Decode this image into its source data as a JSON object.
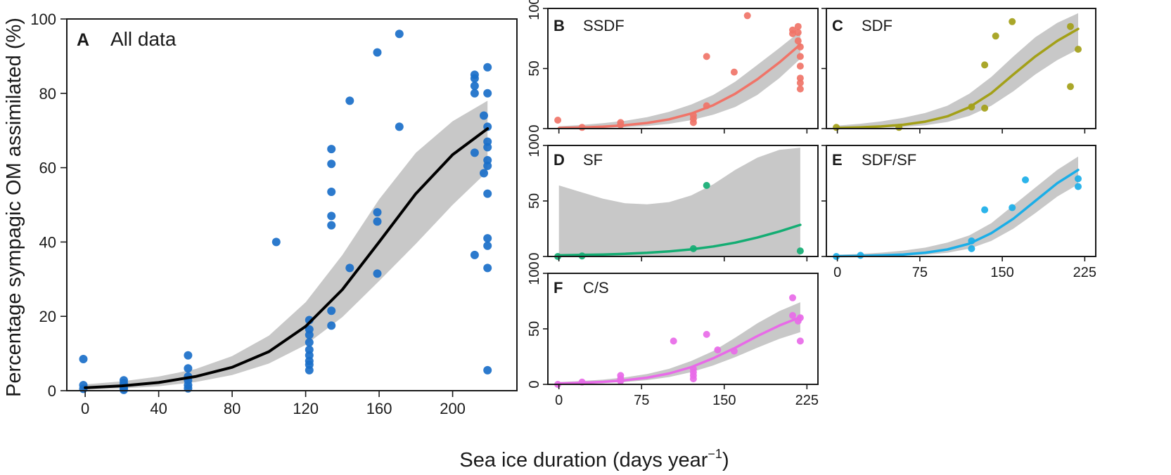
{
  "figure": {
    "xlabel": "Sea ice duration (days year",
    "xlabel_sup": "−1",
    "xlabel_close": ")",
    "ylabel": "Percentage sympagic OM assimilated (%)"
  },
  "chart_data": [
    {
      "id": "A",
      "label": "A",
      "title": "All data",
      "type": "scatter",
      "xlim": [
        -10,
        235
      ],
      "ylim": [
        0,
        100
      ],
      "xticks": [
        0,
        40,
        80,
        120,
        160,
        200
      ],
      "yticks": [
        0,
        20,
        40,
        60,
        80,
        100
      ],
      "show_xtick_labels": true,
      "show_ytick_labels": true,
      "point_color": "#1a6fc9",
      "line_color": "#000000",
      "band_color": "#c8c8c8",
      "points": [
        [
          -1,
          8.5
        ],
        [
          -1,
          1.5
        ],
        [
          -1,
          0.5
        ],
        [
          21,
          2.8
        ],
        [
          21,
          2
        ],
        [
          21,
          1.2
        ],
        [
          21,
          0.6
        ],
        [
          21,
          0.2
        ],
        [
          56,
          9.5
        ],
        [
          56,
          6
        ],
        [
          56,
          3.8
        ],
        [
          56,
          2.8
        ],
        [
          56,
          1.5
        ],
        [
          56,
          0.6
        ],
        [
          104,
          40
        ],
        [
          122,
          19
        ],
        [
          122,
          16.5
        ],
        [
          122,
          15
        ],
        [
          122,
          13
        ],
        [
          122,
          11
        ],
        [
          122,
          9.5
        ],
        [
          122,
          8
        ],
        [
          122,
          7
        ],
        [
          122,
          5.5
        ],
        [
          134,
          65
        ],
        [
          134,
          61
        ],
        [
          134,
          53.5
        ],
        [
          134,
          47
        ],
        [
          134,
          44.5
        ],
        [
          134,
          21.5
        ],
        [
          134,
          17.5
        ],
        [
          144,
          33
        ],
        [
          144,
          78
        ],
        [
          159,
          91
        ],
        [
          159,
          48
        ],
        [
          159,
          45.5
        ],
        [
          159,
          31.5
        ],
        [
          171,
          96
        ],
        [
          171,
          71
        ],
        [
          212,
          85
        ],
        [
          212,
          84
        ],
        [
          212,
          82
        ],
        [
          212,
          80
        ],
        [
          212,
          64
        ],
        [
          212,
          36.5
        ],
        [
          217,
          74
        ],
        [
          217,
          58.5
        ],
        [
          219,
          87
        ],
        [
          219,
          80
        ],
        [
          219,
          71
        ],
        [
          219,
          67
        ],
        [
          219,
          65.5
        ],
        [
          219,
          62
        ],
        [
          219,
          60.5
        ],
        [
          219,
          53
        ],
        [
          219,
          41
        ],
        [
          219,
          39
        ],
        [
          219,
          33
        ],
        [
          219,
          5.5
        ]
      ],
      "fit": {
        "x": [
          0,
          20,
          40,
          60,
          80,
          100,
          120,
          140,
          160,
          180,
          200,
          219
        ],
        "y": [
          0.8,
          1.3,
          2.2,
          3.8,
          6.3,
          10.5,
          17.3,
          27.2,
          40,
          53,
          63.5,
          70.5
        ]
      },
      "band": {
        "x": [
          0,
          20,
          40,
          60,
          80,
          100,
          120,
          140,
          160,
          180,
          200,
          219
        ],
        "lower": [
          0.3,
          0.6,
          1.2,
          2.3,
          4.2,
          7.3,
          12.3,
          19.8,
          29.5,
          39.5,
          50,
          59
        ],
        "upper": [
          1.7,
          2.5,
          3.8,
          5.8,
          9.3,
          14.8,
          23.8,
          36.5,
          51.5,
          64,
          72.5,
          78
        ]
      }
    },
    {
      "id": "B",
      "label": "B",
      "title": "SSDF",
      "type": "scatter",
      "xlim": [
        -10,
        235
      ],
      "ylim": [
        0,
        100
      ],
      "xticks": [
        0,
        75,
        150,
        225
      ],
      "yticks": [
        0,
        50,
        100
      ],
      "show_xtick_labels": false,
      "show_ytick_labels": true,
      "point_color": "#f07468",
      "line_color": "#f07468",
      "band_color": "#c8c8c8",
      "points": [
        [
          -1,
          7
        ],
        [
          21,
          1
        ],
        [
          56,
          5
        ],
        [
          56,
          3
        ],
        [
          122,
          11
        ],
        [
          122,
          8
        ],
        [
          122,
          5
        ],
        [
          134,
          60
        ],
        [
          134,
          19
        ],
        [
          159,
          47
        ],
        [
          171,
          94
        ],
        [
          212,
          82
        ],
        [
          212,
          79
        ],
        [
          217,
          85
        ],
        [
          217,
          80
        ],
        [
          217,
          73
        ],
        [
          219,
          68
        ],
        [
          219,
          60
        ],
        [
          219,
          52
        ],
        [
          219,
          42
        ],
        [
          219,
          38
        ],
        [
          219,
          33
        ]
      ],
      "fit": {
        "x": [
          0,
          20,
          40,
          60,
          80,
          100,
          120,
          140,
          160,
          180,
          200,
          219
        ],
        "y": [
          0.5,
          0.9,
          1.6,
          2.8,
          4.7,
          7.7,
          12.5,
          19.5,
          29,
          41,
          55,
          70
        ]
      },
      "band": {
        "x": [
          0,
          20,
          40,
          60,
          80,
          100,
          120,
          140,
          160,
          180,
          200,
          219
        ],
        "lower": [
          0.1,
          0.3,
          0.6,
          1.2,
          2.2,
          4,
          7,
          11.5,
          18,
          28,
          42,
          58
        ],
        "upper": [
          2,
          3,
          4.5,
          6.5,
          9.5,
          14,
          20,
          28,
          39,
          53,
          67,
          81
        ]
      }
    },
    {
      "id": "C",
      "label": "C",
      "title": "SDF",
      "type": "scatter",
      "xlim": [
        -10,
        235
      ],
      "ylim": [
        0,
        100
      ],
      "xticks": [
        0,
        75,
        150,
        225
      ],
      "yticks": [
        0,
        50,
        100
      ],
      "show_xtick_labels": false,
      "show_ytick_labels": false,
      "point_color": "#a3a018",
      "line_color": "#a3a018",
      "band_color": "#c8c8c8",
      "points": [
        [
          -1,
          1
        ],
        [
          56,
          1
        ],
        [
          122,
          18
        ],
        [
          134,
          53
        ],
        [
          134,
          17
        ],
        [
          144,
          77
        ],
        [
          159,
          89
        ],
        [
          212,
          85
        ],
        [
          212,
          35
        ],
        [
          219,
          66
        ]
      ],
      "fit": {
        "x": [
          0,
          20,
          40,
          60,
          80,
          100,
          120,
          140,
          160,
          180,
          200,
          219
        ],
        "y": [
          0.5,
          1,
          1.8,
          3.2,
          5.8,
          10.2,
          17.8,
          29.5,
          45,
          60,
          73,
          83
        ]
      },
      "band": {
        "x": [
          0,
          20,
          40,
          60,
          80,
          100,
          120,
          140,
          160,
          180,
          200,
          219
        ],
        "lower": [
          0.1,
          0.3,
          0.7,
          1.4,
          2.8,
          5.5,
          10.5,
          19,
          31,
          45,
          57,
          66
        ],
        "upper": [
          2.5,
          4,
          6,
          9,
          13,
          19,
          29,
          43,
          60,
          76,
          88,
          96
        ]
      }
    },
    {
      "id": "D",
      "label": "D",
      "title": "SF",
      "type": "scatter",
      "xlim": [
        -10,
        235
      ],
      "ylim": [
        0,
        100
      ],
      "xticks": [
        0,
        75,
        150,
        225
      ],
      "yticks": [
        0,
        50,
        100
      ],
      "show_xtick_labels": false,
      "show_ytick_labels": true,
      "point_color": "#14ad73",
      "line_color": "#14ad73",
      "band_color": "#c8c8c8",
      "points": [
        [
          -1,
          0
        ],
        [
          21,
          0.5
        ],
        [
          122,
          7
        ],
        [
          134,
          64
        ],
        [
          219,
          5
        ]
      ],
      "fit": {
        "x": [
          0,
          20,
          40,
          60,
          80,
          100,
          120,
          140,
          160,
          180,
          200,
          219
        ],
        "y": [
          1,
          1.4,
          1.8,
          2.4,
          3.3,
          4.6,
          6.4,
          9,
          12.5,
          17,
          22.5,
          28.5
        ]
      },
      "band": {
        "x": [
          0,
          20,
          40,
          60,
          80,
          100,
          120,
          140,
          160,
          180,
          200,
          219
        ],
        "lower": [
          0,
          0,
          0,
          0,
          0,
          0,
          0,
          0,
          0,
          0,
          0,
          0
        ],
        "upper": [
          64,
          58,
          52,
          48,
          47,
          49,
          55,
          65,
          78,
          89,
          96,
          98
        ]
      }
    },
    {
      "id": "E",
      "label": "E",
      "title": "SDF/SF",
      "type": "scatter",
      "xlim": [
        -10,
        235
      ],
      "ylim": [
        0,
        100
      ],
      "xticks": [
        0,
        75,
        150,
        225
      ],
      "yticks": [
        0,
        50,
        100
      ],
      "show_xtick_labels": true,
      "show_ytick_labels": false,
      "point_color": "#1aaee8",
      "line_color": "#1aaee8",
      "band_color": "#c8c8c8",
      "points": [
        [
          -1,
          0
        ],
        [
          21,
          1
        ],
        [
          122,
          14
        ],
        [
          122,
          7
        ],
        [
          134,
          42
        ],
        [
          159,
          44
        ],
        [
          171,
          69
        ],
        [
          219,
          70
        ],
        [
          219,
          63
        ]
      ],
      "fit": {
        "x": [
          0,
          20,
          40,
          60,
          80,
          100,
          120,
          140,
          160,
          180,
          200,
          219
        ],
        "y": [
          0.3,
          0.5,
          1,
          1.8,
          3.4,
          6.3,
          11.5,
          21,
          34,
          50,
          66,
          78
        ]
      },
      "band": {
        "x": [
          0,
          20,
          40,
          60,
          80,
          100,
          120,
          140,
          160,
          180,
          200,
          219
        ],
        "lower": [
          0.1,
          0.2,
          0.4,
          0.8,
          1.6,
          3.3,
          7,
          14,
          25,
          39,
          54,
          65
        ],
        "upper": [
          1.5,
          2.3,
          3.5,
          5.3,
          8,
          12.5,
          19,
          30,
          46,
          62,
          78,
          90
        ]
      }
    },
    {
      "id": "F",
      "label": "F",
      "title": "C/S",
      "type": "scatter",
      "xlim": [
        -10,
        235
      ],
      "ylim": [
        0,
        100
      ],
      "xticks": [
        0,
        75,
        150,
        225
      ],
      "yticks": [
        0,
        50,
        100
      ],
      "show_xtick_labels": true,
      "show_ytick_labels": true,
      "point_color": "#e86ae8",
      "line_color": "#e86ae8",
      "band_color": "#c8c8c8",
      "points": [
        [
          -1,
          0
        ],
        [
          21,
          2
        ],
        [
          56,
          8
        ],
        [
          56,
          5
        ],
        [
          56,
          3
        ],
        [
          104,
          39
        ],
        [
          122,
          14
        ],
        [
          122,
          11
        ],
        [
          122,
          8
        ],
        [
          122,
          5
        ],
        [
          134,
          45
        ],
        [
          144,
          31
        ],
        [
          159,
          30
        ],
        [
          212,
          78
        ],
        [
          212,
          62
        ],
        [
          217,
          57
        ],
        [
          219,
          60
        ],
        [
          219,
          39
        ]
      ],
      "fit": {
        "x": [
          0,
          20,
          40,
          60,
          80,
          100,
          120,
          140,
          160,
          180,
          200,
          219
        ],
        "y": [
          0.8,
          1.3,
          2.2,
          3.7,
          6,
          9.8,
          15.5,
          23.5,
          33,
          43.5,
          53,
          60.5
        ]
      },
      "band": {
        "x": [
          0,
          20,
          40,
          60,
          80,
          100,
          120,
          140,
          160,
          180,
          200,
          219
        ],
        "lower": [
          0.3,
          0.6,
          1.1,
          2.1,
          3.8,
          6.6,
          11,
          17,
          24.5,
          33,
          41,
          47
        ],
        "upper": [
          2,
          3,
          4.3,
          6.3,
          9.3,
          14,
          21,
          30,
          42,
          55,
          66,
          74
        ]
      }
    }
  ]
}
